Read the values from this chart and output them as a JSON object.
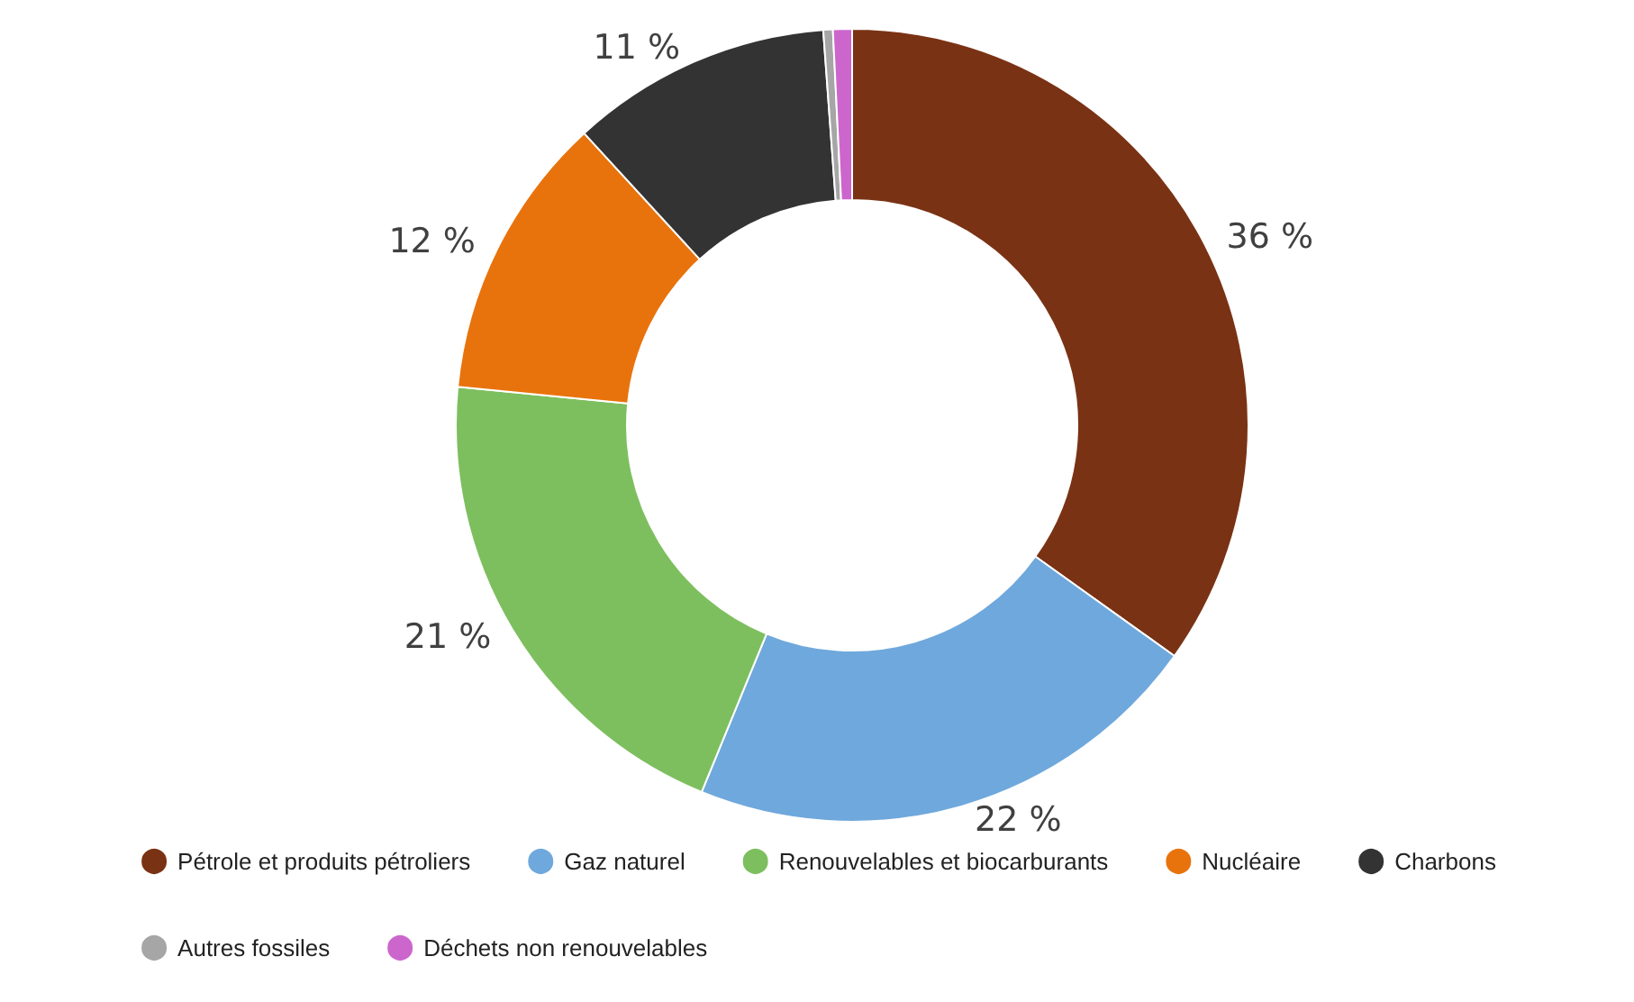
{
  "chart_data": {
    "type": "donut",
    "categories": [
      "Pétrole et produits pétroliers",
      "Gaz naturel",
      "Renouvelables et biocarburants",
      "Nucléaire",
      "Charbons",
      "Autres fossiles",
      "Déchets non renouvelables"
    ],
    "values": [
      36,
      22,
      21,
      12,
      11,
      0.4,
      0.8
    ],
    "colors": [
      "#7a3214",
      "#6fa8dc",
      "#7dbf5e",
      "#e8730c",
      "#333333",
      "#a6a6a6",
      "#cc66cc"
    ],
    "value_labels": [
      "36 %",
      "22 %",
      "21 %",
      "12 %",
      "11 %",
      null,
      null
    ],
    "legend": "bottom"
  }
}
